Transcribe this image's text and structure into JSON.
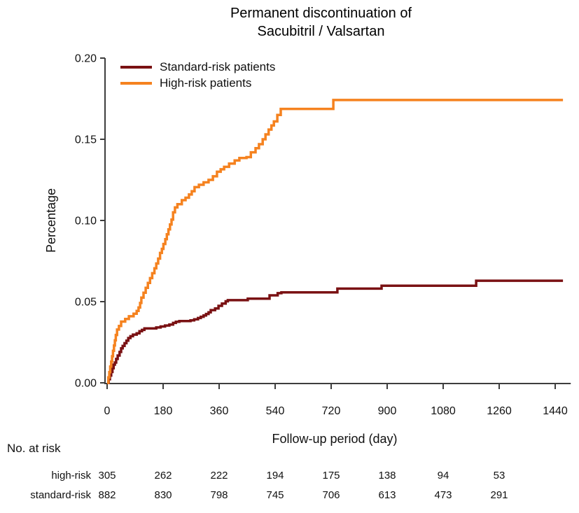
{
  "title": {
    "line1": "Permanent discontinuation of",
    "line2": "Sacubitril / Valsartan"
  },
  "legend": [
    {
      "label": "Standard-risk patients",
      "color": "#7A1113"
    },
    {
      "label": "High-risk patients",
      "color": "#F5821F"
    }
  ],
  "chart_data": {
    "type": "line",
    "subtype": "step-cumulative-incidence",
    "title": "Permanent discontinuation of Sacubitril / Valsartan",
    "xlabel": "Follow-up period (day)",
    "ylabel": "Percentage",
    "xlim": [
      0,
      1490
    ],
    "ylim": [
      0,
      0.2
    ],
    "grid": false,
    "legend_position": "top-left",
    "x_ticks": [
      {
        "v": 0,
        "label": "0"
      },
      {
        "v": 180,
        "label": "180"
      },
      {
        "v": 360,
        "label": "360"
      },
      {
        "v": 540,
        "label": "540"
      },
      {
        "v": 720,
        "label": "720"
      },
      {
        "v": 900,
        "label": "900"
      },
      {
        "v": 1080,
        "label": "1080"
      },
      {
        "v": 1260,
        "label": "1260"
      },
      {
        "v": 1440,
        "label": "1440"
      }
    ],
    "y_ticks": [
      {
        "v": 0.0,
        "label": "0.00"
      },
      {
        "v": 0.05,
        "label": "0.05"
      },
      {
        "v": 0.1,
        "label": "0.10"
      },
      {
        "v": 0.15,
        "label": "0.15"
      },
      {
        "v": 0.2,
        "label": "0.20"
      }
    ],
    "series": [
      {
        "id": "standard-risk",
        "name": "Standard-risk patients",
        "color": "#7A1113",
        "end_x": 1465,
        "steps": [
          [
            0,
            0
          ],
          [
            5,
            0.0022
          ],
          [
            9,
            0.0045
          ],
          [
            13,
            0.0067
          ],
          [
            17,
            0.009
          ],
          [
            21,
            0.0112
          ],
          [
            25,
            0.0125
          ],
          [
            29,
            0.0147
          ],
          [
            34,
            0.0168
          ],
          [
            40,
            0.019
          ],
          [
            45,
            0.0212
          ],
          [
            50,
            0.0227
          ],
          [
            56,
            0.0244
          ],
          [
            62,
            0.026
          ],
          [
            68,
            0.0276
          ],
          [
            75,
            0.0287
          ],
          [
            83,
            0.0297
          ],
          [
            95,
            0.0305
          ],
          [
            104,
            0.0318
          ],
          [
            112,
            0.0326
          ],
          [
            120,
            0.0335
          ],
          [
            158,
            0.0341
          ],
          [
            172,
            0.0347
          ],
          [
            186,
            0.0353
          ],
          [
            200,
            0.0359
          ],
          [
            212,
            0.0369
          ],
          [
            221,
            0.0376
          ],
          [
            232,
            0.038
          ],
          [
            268,
            0.0385
          ],
          [
            280,
            0.0391
          ],
          [
            292,
            0.0399
          ],
          [
            301,
            0.0407
          ],
          [
            310,
            0.0415
          ],
          [
            318,
            0.0424
          ],
          [
            326,
            0.0434
          ],
          [
            333,
            0.0448
          ],
          [
            347,
            0.0458
          ],
          [
            358,
            0.0474
          ],
          [
            369,
            0.0488
          ],
          [
            381,
            0.0502
          ],
          [
            388,
            0.0509
          ],
          [
            452,
            0.0518
          ],
          [
            522,
            0.0539
          ],
          [
            548,
            0.0552
          ],
          [
            560,
            0.0557
          ],
          [
            740,
            0.058
          ],
          [
            882,
            0.0598
          ],
          [
            1186,
            0.0629
          ]
        ]
      },
      {
        "id": "high-risk",
        "name": "High-risk patients",
        "color": "#F5821F",
        "end_x": 1465,
        "steps": [
          [
            0,
            0
          ],
          [
            4,
            0.0033
          ],
          [
            7,
            0.0066
          ],
          [
            10,
            0.01
          ],
          [
            13,
            0.0131
          ],
          [
            16,
            0.0164
          ],
          [
            19,
            0.0197
          ],
          [
            22,
            0.023
          ],
          [
            25,
            0.0262
          ],
          [
            28,
            0.0295
          ],
          [
            32,
            0.0328
          ],
          [
            38,
            0.035
          ],
          [
            45,
            0.0377
          ],
          [
            58,
            0.0393
          ],
          [
            70,
            0.041
          ],
          [
            85,
            0.0426
          ],
          [
            95,
            0.0443
          ],
          [
            101,
            0.0464
          ],
          [
            106,
            0.0492
          ],
          [
            110,
            0.0525
          ],
          [
            117,
            0.0555
          ],
          [
            124,
            0.0585
          ],
          [
            131,
            0.0615
          ],
          [
            138,
            0.0645
          ],
          [
            145,
            0.0675
          ],
          [
            152,
            0.0705
          ],
          [
            158,
            0.0735
          ],
          [
            164,
            0.0765
          ],
          [
            170,
            0.08
          ],
          [
            176,
            0.0825
          ],
          [
            181,
            0.0855
          ],
          [
            187,
            0.0885
          ],
          [
            192,
            0.0915
          ],
          [
            197,
            0.0945
          ],
          [
            202,
            0.0975
          ],
          [
            207,
            0.1005
          ],
          [
            212,
            0.105
          ],
          [
            218,
            0.108
          ],
          [
            226,
            0.11
          ],
          [
            240,
            0.1125
          ],
          [
            252,
            0.114
          ],
          [
            263,
            0.116
          ],
          [
            272,
            0.118
          ],
          [
            281,
            0.1205
          ],
          [
            295,
            0.122
          ],
          [
            310,
            0.1235
          ],
          [
            326,
            0.125
          ],
          [
            340,
            0.1272
          ],
          [
            353,
            0.13
          ],
          [
            365,
            0.1315
          ],
          [
            376,
            0.133
          ],
          [
            392,
            0.135
          ],
          [
            410,
            0.137
          ],
          [
            425,
            0.1385
          ],
          [
            448,
            0.139
          ],
          [
            462,
            0.142
          ],
          [
            477,
            0.1445
          ],
          [
            488,
            0.147
          ],
          [
            500,
            0.15
          ],
          [
            509,
            0.153
          ],
          [
            519,
            0.156
          ],
          [
            528,
            0.1585
          ],
          [
            536,
            0.161
          ],
          [
            547,
            0.165
          ],
          [
            558,
            0.1687
          ],
          [
            727,
            0.1742
          ]
        ]
      }
    ]
  },
  "at_risk": {
    "heading": "No. at risk",
    "columns_days": [
      0,
      180,
      360,
      540,
      720,
      900,
      1080,
      1260
    ],
    "rows": [
      {
        "label": "high-risk",
        "values": [
          "305",
          "262",
          "222",
          "194",
          "175",
          "138",
          "94",
          "53"
        ]
      },
      {
        "label": "standard-risk",
        "values": [
          "882",
          "830",
          "798",
          "745",
          "706",
          "613",
          "473",
          "291"
        ]
      }
    ]
  },
  "style_colors": {
    "axis": "#3d3d3d",
    "text": "#111111"
  }
}
